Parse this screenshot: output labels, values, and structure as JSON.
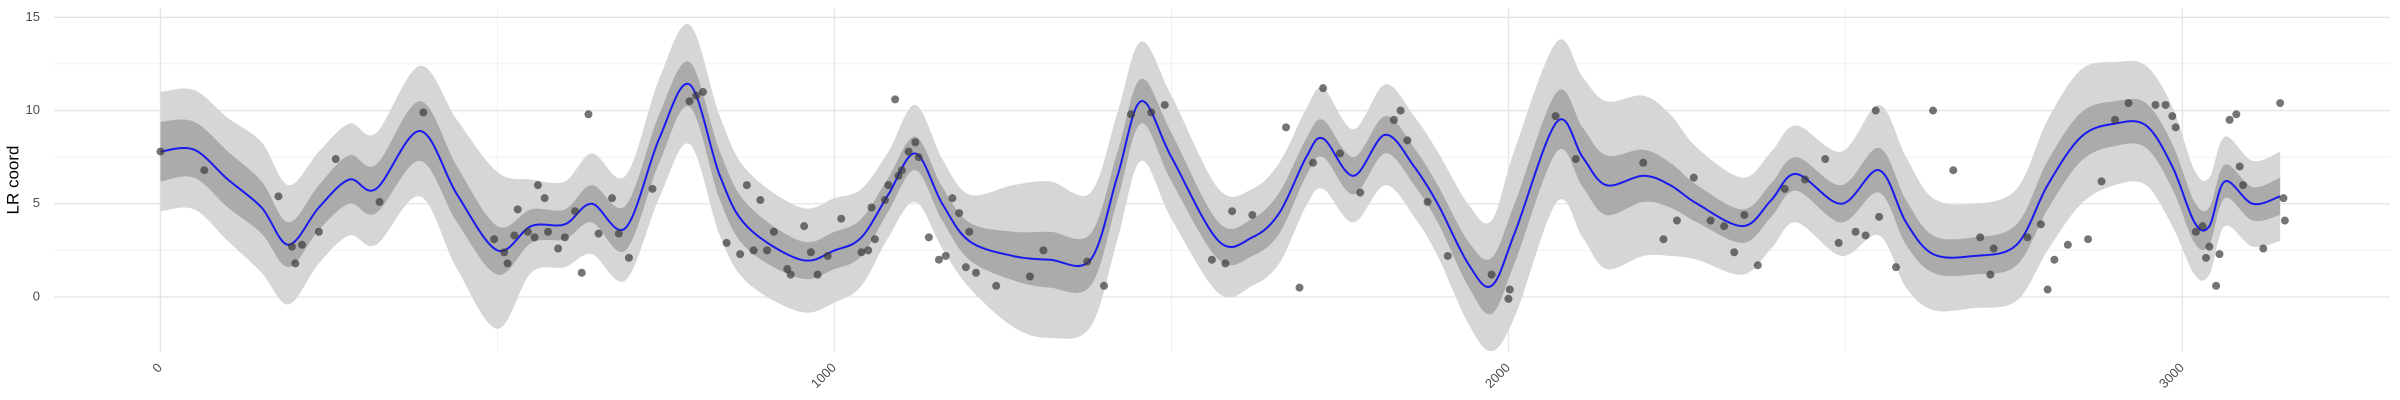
{
  "chart_data": {
    "type": "gp-fit",
    "y_label": "LR coord",
    "xlim": [
      -158,
      3308
    ],
    "ylim": [
      -2.95,
      15.5
    ],
    "xticks": [
      0,
      1000,
      2000,
      3000
    ],
    "yticks": [
      0,
      5,
      10,
      15
    ],
    "minor_xticks": [
      500,
      1500,
      2500
    ],
    "minor_yticks": [
      2.5,
      7.5,
      12.5
    ],
    "grid": true,
    "line_color": "#1a1aee",
    "inner_color": "#ababab",
    "outer_color": "#d6d6d6",
    "point_color": "#3a3a3a",
    "fit": {
      "x": [
        0,
        50,
        100,
        150,
        190,
        235,
        280,
        320,
        385,
        440,
        500,
        550,
        600,
        640,
        690,
        740,
        785,
        830,
        870,
        950,
        1000,
        1040,
        1080,
        1120,
        1160,
        1200,
        1265,
        1320,
        1380,
        1420,
        1455,
        1500,
        1570,
        1620,
        1660,
        1700,
        1725,
        1770,
        1817,
        1860,
        1895,
        1940,
        1975,
        2010,
        2072,
        2110,
        2145,
        2200,
        2240,
        2280,
        2348,
        2390,
        2427,
        2494,
        2550,
        2590,
        2630,
        2690,
        2754,
        2800,
        2850,
        2900,
        2946,
        2985,
        3018,
        3040,
        3063,
        3104,
        3145
      ],
      "mean": [
        7.8,
        7.9,
        6.3,
        4.8,
        2.8,
        4.8,
        6.3,
        5.8,
        8.9,
        5.5,
        2.5,
        3.8,
        3.9,
        5.0,
        3.7,
        8.5,
        11.4,
        6.5,
        3.8,
        2.0,
        2.5,
        3.2,
        5.5,
        7.7,
        5.0,
        3.0,
        2.2,
        2.0,
        2.0,
        6.5,
        10.5,
        7.5,
        3.0,
        3.2,
        4.5,
        7.5,
        8.5,
        6.5,
        8.7,
        7.0,
        5.0,
        1.8,
        0.6,
        3.5,
        9.4,
        7.5,
        6.0,
        6.5,
        6.0,
        5.0,
        3.8,
        5.2,
        6.6,
        5.0,
        6.8,
        4.0,
        2.3,
        2.2,
        2.8,
        6.0,
        8.6,
        9.3,
        9.2,
        7.0,
        4.0,
        3.8,
        6.2,
        5.0,
        5.4
      ],
      "inner": [
        1.6,
        1.5,
        1.5,
        1.4,
        1.2,
        1.2,
        1.3,
        1.3,
        1.6,
        1.5,
        1.3,
        0.9,
        0.8,
        1.0,
        1.2,
        1.3,
        1.2,
        1.3,
        1.2,
        1.0,
        1.0,
        1.0,
        0.9,
        0.9,
        0.9,
        1.0,
        1.3,
        1.5,
        1.4,
        1.3,
        1.2,
        1.3,
        1.0,
        1.0,
        1.1,
        1.0,
        1.0,
        1.0,
        1.0,
        1.0,
        1.0,
        1.2,
        1.5,
        1.6,
        1.6,
        1.6,
        1.6,
        1.4,
        1.2,
        1.0,
        0.9,
        0.9,
        0.9,
        1.0,
        1.2,
        1.2,
        1.0,
        1.0,
        1.1,
        1.3,
        1.3,
        1.2,
        1.2,
        1.2,
        1.1,
        1.0,
        0.9,
        0.9,
        1.0
      ],
      "outer": [
        3.2,
        3.2,
        3.3,
        3.5,
        3.2,
        3.0,
        3.0,
        3.0,
        3.5,
        4.0,
        4.2,
        2.5,
        2.3,
        2.7,
        2.8,
        3.2,
        3.2,
        3.2,
        3.0,
        2.8,
        2.8,
        2.6,
        2.3,
        2.6,
        2.4,
        2.5,
        3.8,
        4.2,
        3.6,
        3.4,
        3.2,
        3.3,
        2.8,
        2.6,
        2.7,
        2.6,
        2.7,
        2.5,
        2.7,
        2.7,
        2.8,
        3.2,
        3.5,
        4.5,
        4.3,
        4.3,
        4.5,
        4.3,
        3.8,
        3.0,
        2.6,
        2.6,
        2.6,
        2.8,
        3.5,
        3.5,
        3.0,
        2.8,
        3.0,
        3.5,
        3.6,
        3.3,
        3.2,
        3.2,
        2.8,
        2.6,
        2.4,
        2.3,
        2.4
      ]
    },
    "points": {
      "x": [
        0,
        65,
        175,
        195,
        200,
        210,
        235,
        260,
        325,
        390,
        495,
        510,
        515,
        525,
        530,
        545,
        555,
        560,
        570,
        575,
        590,
        600,
        615,
        625,
        635,
        650,
        670,
        680,
        695,
        730,
        785,
        795,
        805,
        840,
        860,
        870,
        880,
        890,
        900,
        910,
        930,
        935,
        955,
        965,
        975,
        990,
        1010,
        1040,
        1050,
        1055,
        1060,
        1075,
        1080,
        1090,
        1095,
        1100,
        1110,
        1120,
        1125,
        1140,
        1155,
        1165,
        1175,
        1185,
        1195,
        1200,
        1210,
        1240,
        1290,
        1310,
        1375,
        1400,
        1440,
        1470,
        1490,
        1560,
        1580,
        1590,
        1620,
        1670,
        1690,
        1710,
        1725,
        1750,
        1780,
        1830,
        1840,
        1850,
        1880,
        1910,
        1975,
        2000,
        2002,
        2070,
        2100,
        2200,
        2230,
        2250,
        2275,
        2300,
        2320,
        2335,
        2350,
        2370,
        2410,
        2440,
        2470,
        2490,
        2515,
        2530,
        2545,
        2550,
        2575,
        2630,
        2660,
        2700,
        2715,
        2720,
        2770,
        2790,
        2800,
        2810,
        2830,
        2860,
        2880,
        2900,
        2920,
        2960,
        2975,
        2985,
        2990,
        3020,
        3030,
        3035,
        3040,
        3050,
        3055,
        3070,
        3080,
        3085,
        3090,
        3120,
        3145,
        3150,
        3152
      ],
      "y": [
        7.8,
        6.8,
        5.4,
        2.7,
        1.8,
        2.8,
        3.5,
        7.4,
        5.1,
        9.9,
        3.1,
        2.4,
        1.8,
        3.3,
        4.7,
        3.5,
        3.2,
        6.0,
        5.3,
        3.5,
        2.6,
        3.2,
        4.6,
        1.3,
        9.8,
        3.4,
        5.3,
        3.4,
        2.1,
        5.8,
        10.5,
        10.8,
        11.0,
        2.9,
        2.3,
        6.0,
        2.5,
        5.2,
        2.5,
        3.5,
        1.5,
        1.2,
        3.8,
        2.4,
        1.2,
        2.2,
        4.2,
        2.4,
        2.5,
        4.8,
        3.1,
        5.2,
        6.0,
        10.6,
        6.5,
        6.8,
        7.8,
        8.3,
        7.5,
        3.2,
        2.0,
        2.2,
        5.3,
        4.5,
        1.6,
        3.5,
        1.3,
        0.6,
        1.1,
        2.5,
        1.9,
        0.6,
        9.8,
        9.9,
        10.3,
        2.0,
        1.8,
        4.6,
        4.4,
        9.1,
        0.5,
        7.2,
        11.2,
        7.7,
        5.6,
        9.5,
        10.0,
        8.4,
        5.1,
        2.2,
        1.2,
        -0.1,
        0.4,
        9.7,
        7.4,
        7.2,
        3.1,
        4.1,
        6.4,
        4.1,
        3.8,
        2.4,
        4.4,
        1.7,
        5.8,
        6.3,
        7.4,
        2.9,
        3.5,
        3.3,
        10.0,
        4.3,
        1.6,
        10.0,
        6.8,
        3.2,
        1.2,
        2.6,
        3.2,
        3.9,
        0.4,
        2.0,
        2.8,
        3.1,
        6.2,
        9.5,
        10.4,
        10.3,
        10.3,
        9.7,
        9.1,
        3.5,
        3.8,
        2.1,
        2.7,
        0.6,
        2.3,
        9.5,
        9.8,
        7.0,
        6.0,
        2.6,
        10.4,
        5.3,
        4.1
      ]
    }
  }
}
